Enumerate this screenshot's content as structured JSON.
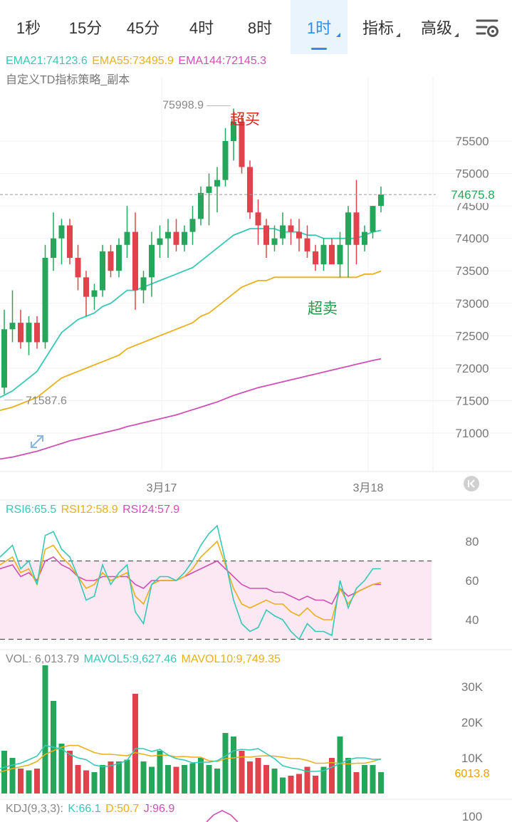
{
  "tabs": [
    {
      "label": "1秒",
      "active": false,
      "caret": false
    },
    {
      "label": "15分",
      "active": false,
      "caret": false
    },
    {
      "label": "45分",
      "active": false,
      "caret": false
    },
    {
      "label": "4时",
      "active": false,
      "caret": false
    },
    {
      "label": "8时",
      "active": false,
      "caret": false
    },
    {
      "label": "1时",
      "active": true,
      "caret": true
    },
    {
      "label": "指标",
      "active": false,
      "caret": true
    },
    {
      "label": "高级",
      "active": false,
      "caret": true
    }
  ],
  "settings_icon": "settings-sliders-icon",
  "expand_icon": "expand-arrows-icon",
  "scroll_latest_icon": "scroll-to-latest-icon",
  "colors": {
    "up": "#26a65b",
    "down": "#e0434b",
    "ema21": "#37c8b5",
    "ema55": "#e8b01c",
    "ema144": "#d04fb4",
    "active_tab": "#2d8cf0"
  },
  "legend": {
    "ema": [
      {
        "text": "EMA21:74123.6",
        "color": "#37c8b5"
      },
      {
        "text": "EMA55:73495.9",
        "color": "#e8b01c"
      },
      {
        "text": "EMA144:72145.3",
        "color": "#d04fb4"
      }
    ],
    "indicator_name": "自定义TD指标策略_副本",
    "rsi": [
      {
        "text": "RSI6:65.5",
        "color": "#37c8b5"
      },
      {
        "text": "RSI12:58.9",
        "color": "#e8b01c"
      },
      {
        "text": "RSI24:57.9",
        "color": "#d04fb4"
      }
    ],
    "vol": [
      {
        "text": "VOL: 6,013.79",
        "color": "#888888"
      },
      {
        "text": "MAVOL5:9,627.46",
        "color": "#37c8b5"
      },
      {
        "text": "MAVOL10:9,749.35",
        "color": "#e8b01c"
      }
    ],
    "kdj": [
      {
        "text": "KDJ(9,3,3):",
        "color": "#888888"
      },
      {
        "text": "K:66.1",
        "color": "#37c8b5"
      },
      {
        "text": "D:50.7",
        "color": "#e8b01c"
      },
      {
        "text": "J:96.9",
        "color": "#d04fb4"
      }
    ]
  },
  "chart_data": [
    {
      "type": "candlestick",
      "price_ticks": [
        75500,
        75000,
        74500,
        74000,
        73500,
        73000,
        72500,
        72000,
        71500,
        71000
      ],
      "x_labels": [
        "3月17",
        "3月18"
      ],
      "last_price": "74675.8",
      "max_label": "75998.9",
      "min_label": "71587.6",
      "annotations": [
        {
          "text": "超买"
        },
        {
          "text": "超卖"
        }
      ],
      "candles": [
        {
          "o": 71700,
          "h": 72900,
          "l": 71600,
          "c": 72600
        },
        {
          "o": 72600,
          "h": 73200,
          "l": 72400,
          "c": 72700
        },
        {
          "o": 72700,
          "h": 72900,
          "l": 72300,
          "c": 72400
        },
        {
          "o": 72400,
          "h": 72800,
          "l": 72200,
          "c": 72700
        },
        {
          "o": 72700,
          "h": 72800,
          "l": 72300,
          "c": 72400
        },
        {
          "o": 72400,
          "h": 73900,
          "l": 72300,
          "c": 73700
        },
        {
          "o": 73700,
          "h": 74400,
          "l": 73500,
          "c": 74000
        },
        {
          "o": 74000,
          "h": 74300,
          "l": 73600,
          "c": 74200
        },
        {
          "o": 74200,
          "h": 74300,
          "l": 73600,
          "c": 73700
        },
        {
          "o": 73700,
          "h": 73900,
          "l": 73200,
          "c": 73400
        },
        {
          "o": 73400,
          "h": 73500,
          "l": 72800,
          "c": 73100
        },
        {
          "o": 73100,
          "h": 73300,
          "l": 72900,
          "c": 73200
        },
        {
          "o": 73200,
          "h": 73900,
          "l": 73100,
          "c": 73800
        },
        {
          "o": 73800,
          "h": 73900,
          "l": 73400,
          "c": 73500
        },
        {
          "o": 73500,
          "h": 74000,
          "l": 73400,
          "c": 73900
        },
        {
          "o": 73900,
          "h": 74500,
          "l": 73700,
          "c": 74100
        },
        {
          "o": 74100,
          "h": 74400,
          "l": 72900,
          "c": 73200
        },
        {
          "o": 73200,
          "h": 73500,
          "l": 73000,
          "c": 73400
        },
        {
          "o": 73400,
          "h": 74100,
          "l": 73100,
          "c": 73900
        },
        {
          "o": 73900,
          "h": 74200,
          "l": 73700,
          "c": 74000
        },
        {
          "o": 74000,
          "h": 74300,
          "l": 73700,
          "c": 74100
        },
        {
          "o": 74100,
          "h": 74300,
          "l": 73800,
          "c": 73900
        },
        {
          "o": 73900,
          "h": 74200,
          "l": 73800,
          "c": 74100
        },
        {
          "o": 74100,
          "h": 74500,
          "l": 73900,
          "c": 74300
        },
        {
          "o": 74300,
          "h": 74800,
          "l": 74200,
          "c": 74700
        },
        {
          "o": 74700,
          "h": 75000,
          "l": 74200,
          "c": 74800
        },
        {
          "o": 74800,
          "h": 75100,
          "l": 74400,
          "c": 74900
        },
        {
          "o": 74900,
          "h": 75700,
          "l": 74800,
          "c": 75500
        },
        {
          "o": 75500,
          "h": 76000,
          "l": 75200,
          "c": 75800
        },
        {
          "o": 75800,
          "h": 75900,
          "l": 75000,
          "c": 75100
        },
        {
          "o": 75100,
          "h": 75200,
          "l": 74300,
          "c": 74400
        },
        {
          "o": 74400,
          "h": 74600,
          "l": 73900,
          "c": 74200
        },
        {
          "o": 74200,
          "h": 74300,
          "l": 73700,
          "c": 73900
        },
        {
          "o": 73900,
          "h": 74200,
          "l": 73800,
          "c": 74000
        },
        {
          "o": 74000,
          "h": 74400,
          "l": 73900,
          "c": 74200
        },
        {
          "o": 74200,
          "h": 74300,
          "l": 73900,
          "c": 74100
        },
        {
          "o": 74100,
          "h": 74300,
          "l": 73800,
          "c": 74000
        },
        {
          "o": 74000,
          "h": 74200,
          "l": 73700,
          "c": 73800
        },
        {
          "o": 73800,
          "h": 73900,
          "l": 73500,
          "c": 73600
        },
        {
          "o": 73600,
          "h": 74000,
          "l": 73500,
          "c": 73900
        },
        {
          "o": 73900,
          "h": 74000,
          "l": 73600,
          "c": 73600
        },
        {
          "o": 73600,
          "h": 74100,
          "l": 73400,
          "c": 73900
        },
        {
          "o": 73900,
          "h": 74500,
          "l": 73400,
          "c": 74400
        },
        {
          "o": 74400,
          "h": 74900,
          "l": 73600,
          "c": 73900
        },
        {
          "o": 73900,
          "h": 74200,
          "l": 73800,
          "c": 74100
        },
        {
          "o": 74100,
          "h": 74500,
          "l": 74000,
          "c": 74500
        },
        {
          "o": 74500,
          "h": 74800,
          "l": 74400,
          "c": 74676
        }
      ],
      "ema21": [
        71550,
        71650,
        71750,
        71850,
        71950,
        72150,
        72350,
        72550,
        72650,
        72750,
        72800,
        72850,
        72950,
        73000,
        73100,
        73200,
        73200,
        73250,
        73300,
        73350,
        73400,
        73450,
        73500,
        73550,
        73650,
        73750,
        73850,
        73950,
        74050,
        74100,
        74150,
        74150,
        74150,
        74150,
        74100,
        74100,
        74100,
        74050,
        74050,
        74000,
        74000,
        74000,
        74000,
        74000,
        74050,
        74100,
        74124
      ],
      "ema55": [
        71350,
        71400,
        71450,
        71500,
        71550,
        71650,
        71750,
        71850,
        71900,
        71950,
        72000,
        72050,
        72100,
        72150,
        72200,
        72300,
        72350,
        72400,
        72450,
        72500,
        72550,
        72600,
        72650,
        72700,
        72800,
        72850,
        72950,
        73050,
        73150,
        73250,
        73300,
        73350,
        73350,
        73400,
        73400,
        73400,
        73400,
        73400,
        73400,
        73400,
        73400,
        73400,
        73400,
        73400,
        73450,
        73450,
        73496
      ],
      "ema144": [
        70600,
        70630,
        70660,
        70690,
        70720,
        70760,
        70800,
        70840,
        70880,
        70910,
        70940,
        70970,
        71000,
        71030,
        71060,
        71100,
        71130,
        71160,
        71190,
        71220,
        71250,
        71280,
        71320,
        71360,
        71400,
        71440,
        71480,
        71530,
        71580,
        71620,
        71660,
        71700,
        71730,
        71760,
        71790,
        71820,
        71850,
        71880,
        71910,
        71940,
        71970,
        72000,
        72030,
        72060,
        72090,
        72120,
        72145
      ]
    },
    {
      "type": "line",
      "name": "RSI",
      "y_ticks": [
        80,
        60,
        40
      ],
      "ylim": [
        25,
        95
      ],
      "band": [
        70,
        30
      ],
      "rsi6": [
        72,
        78,
        66,
        70,
        58,
        83,
        85,
        76,
        72,
        62,
        50,
        52,
        68,
        58,
        64,
        68,
        44,
        38,
        58,
        62,
        62,
        60,
        64,
        70,
        78,
        84,
        88,
        70,
        50,
        38,
        34,
        36,
        45,
        42,
        40,
        34,
        30,
        38,
        34,
        34,
        32,
        60,
        46,
        56,
        60,
        66,
        66
      ],
      "rsi12": [
        68,
        72,
        64,
        66,
        58,
        76,
        78,
        72,
        68,
        62,
        56,
        58,
        64,
        60,
        62,
        64,
        52,
        48,
        58,
        60,
        60,
        60,
        62,
        66,
        72,
        76,
        80,
        68,
        56,
        48,
        46,
        48,
        50,
        48,
        48,
        44,
        42,
        46,
        42,
        40,
        40,
        56,
        48,
        54,
        56,
        58,
        59
      ],
      "rsi24": [
        66,
        68,
        62,
        64,
        60,
        70,
        72,
        68,
        66,
        62,
        60,
        60,
        62,
        62,
        62,
        62,
        58,
        56,
        60,
        60,
        60,
        60,
        62,
        64,
        66,
        68,
        70,
        66,
        62,
        58,
        56,
        56,
        56,
        54,
        54,
        52,
        50,
        52,
        50,
        50,
        48,
        56,
        52,
        54,
        56,
        58,
        58
      ]
    },
    {
      "type": "bar",
      "name": "VOL",
      "y_ticks": [
        "30K",
        "20K",
        "10K"
      ],
      "y_tick_values": [
        30000,
        20000,
        10000
      ],
      "ylim": [
        0,
        37000
      ],
      "last_value": "6013.8",
      "volumes": [
        12000,
        10000,
        7000,
        6500,
        7000,
        36000,
        26000,
        14000,
        12000,
        8000,
        6500,
        6000,
        8000,
        9000,
        9000,
        9500,
        28000,
        9000,
        7500,
        12000,
        8000,
        7500,
        8000,
        8500,
        10000,
        8000,
        7000,
        17000,
        16000,
        12000,
        9000,
        10000,
        8000,
        7000,
        4500,
        5000,
        5500,
        7500,
        5000,
        7500,
        10000,
        16000,
        10000,
        6000,
        8000,
        8000,
        6014
      ],
      "mavol5": [
        7000,
        8000,
        8500,
        9500,
        10500,
        13500,
        13000,
        12500,
        11000,
        10000,
        9500,
        8000,
        7500,
        7800,
        8400,
        9300,
        12600,
        12600,
        11800,
        12400,
        10800,
        9800,
        9400,
        8600,
        8800,
        8800,
        9200,
        10500,
        12000,
        12400,
        12200,
        12600,
        11200,
        9800,
        7800,
        7200,
        6800,
        6200,
        6200,
        6400,
        7400,
        8400,
        9500,
        10000,
        10000,
        9600,
        9627
      ],
      "mavol10": [
        6000,
        7000,
        7500,
        8000,
        9000,
        11000,
        12000,
        13000,
        13500,
        13500,
        12500,
        11500,
        11000,
        11000,
        10800,
        10600,
        11500,
        11000,
        10500,
        10800,
        10700,
        10300,
        10400,
        10200,
        10200,
        9200,
        9000,
        9800,
        10000,
        10300,
        10200,
        10500,
        10600,
        10500,
        10200,
        9800,
        9800,
        9300,
        8500,
        8500,
        8700,
        8400,
        8300,
        8500,
        8500,
        9000,
        9749
      ]
    },
    {
      "type": "line",
      "name": "KDJ",
      "y_ticks": [
        100
      ],
      "ylim": [
        0,
        110
      ]
    }
  ]
}
